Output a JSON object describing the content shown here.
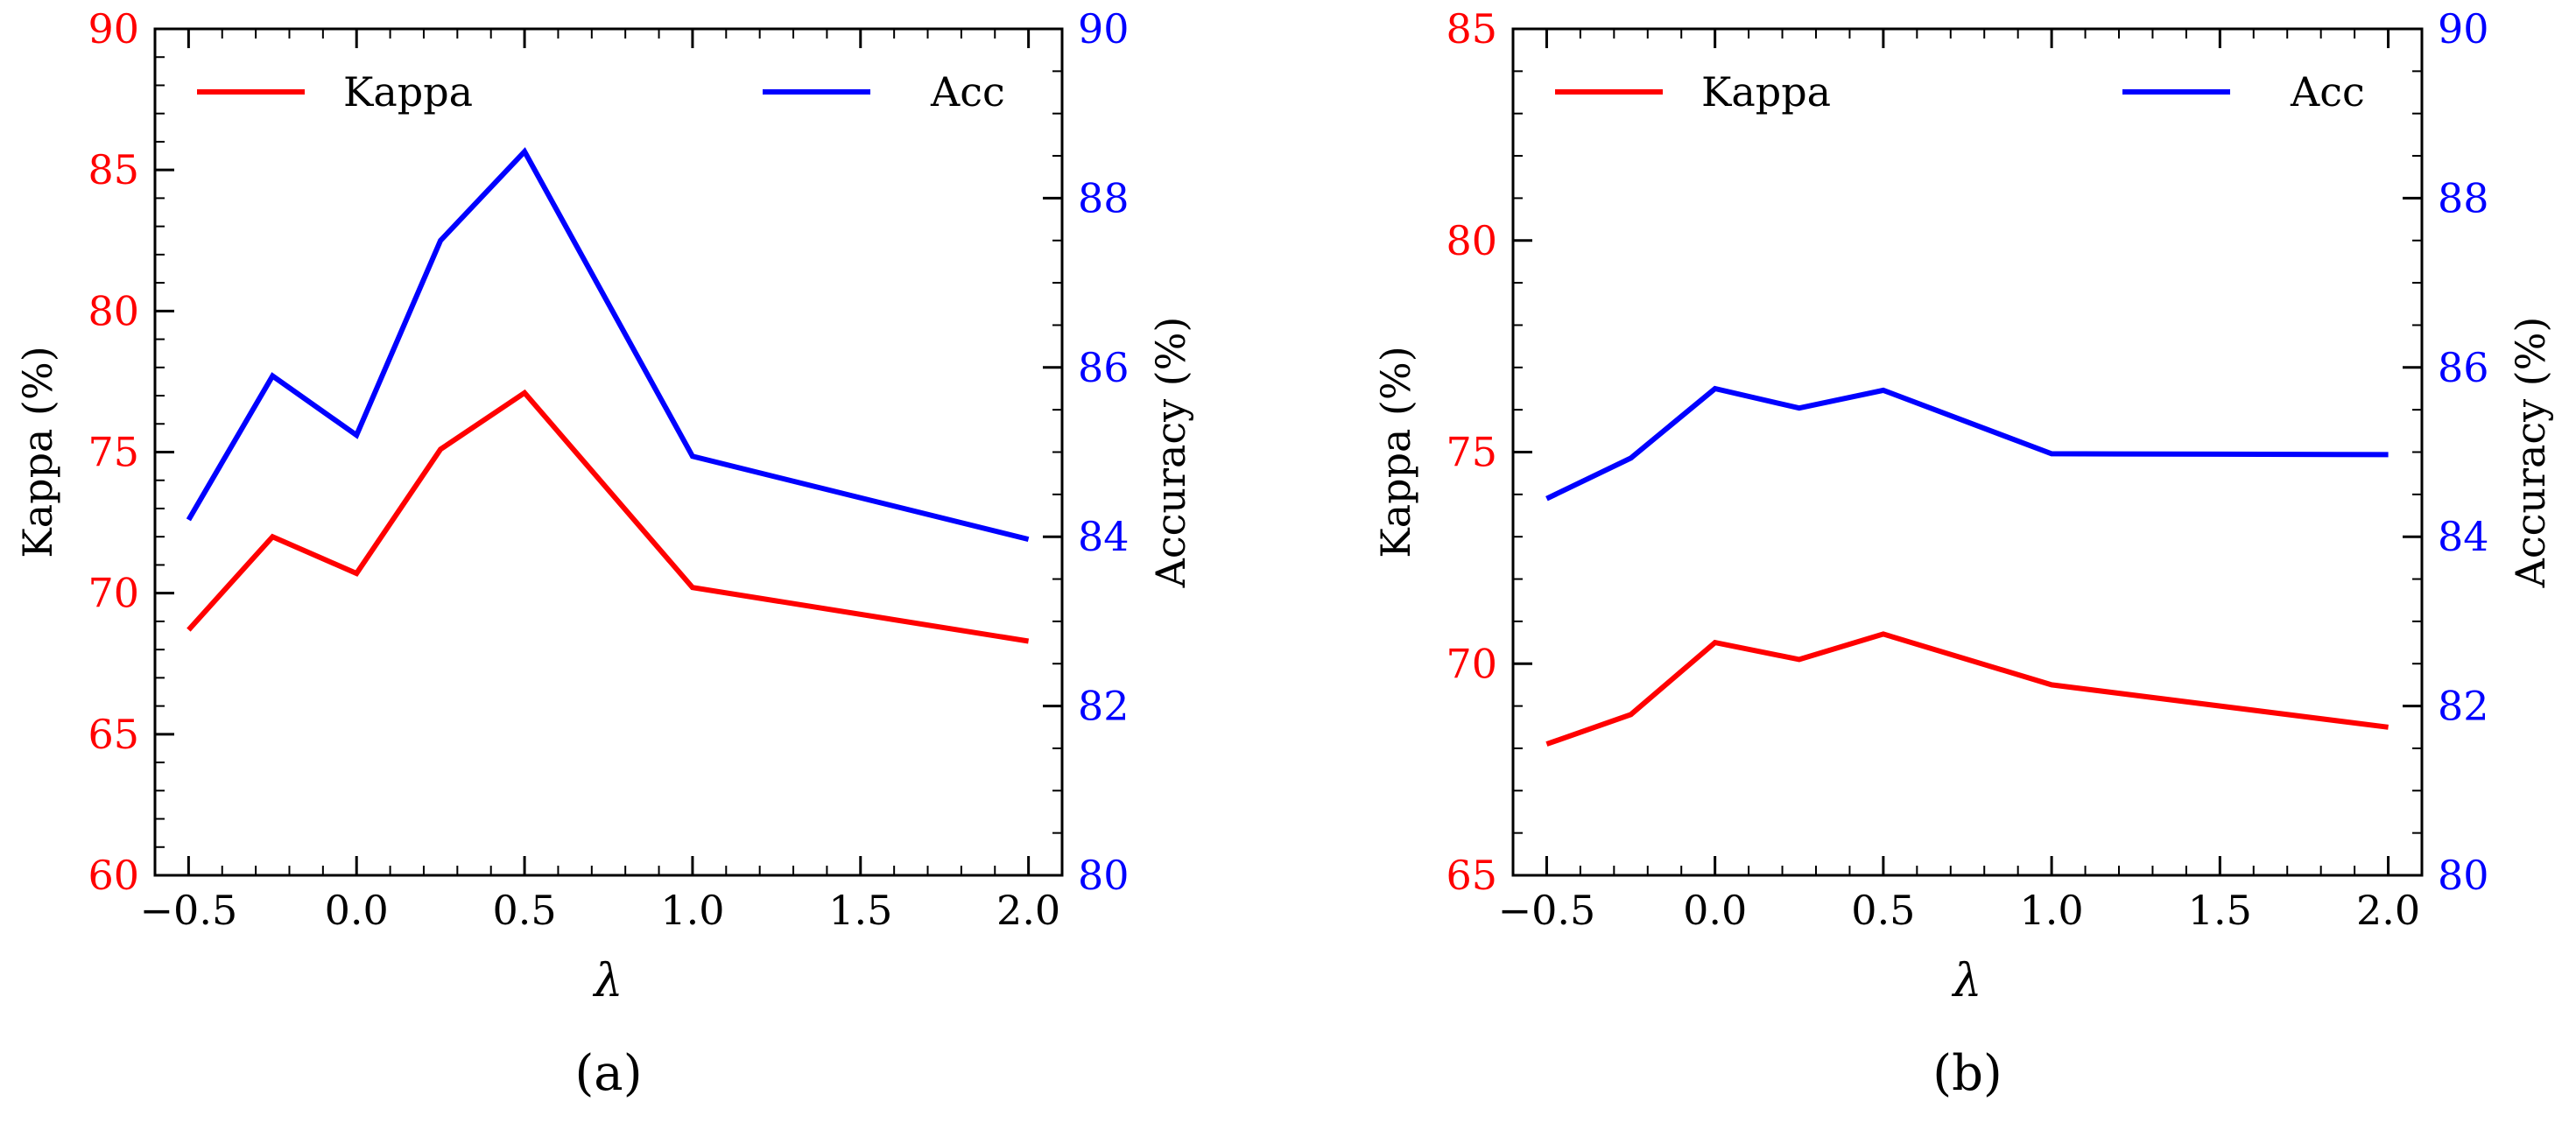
{
  "chart_data": [
    {
      "type": "line",
      "caption": "(a)",
      "xlabel": "λ",
      "ylabel_left": "Kappa (%)",
      "ylabel_right": "Accuracy (%)",
      "xlim": [
        -0.6,
        2.1
      ],
      "ylim_left": [
        60,
        90
      ],
      "ylim_right": [
        80,
        90
      ],
      "xticks": [
        -0.5,
        0.0,
        0.5,
        1.0,
        1.5,
        2.0
      ],
      "xtick_labels": [
        "−0.5",
        "0.0",
        "0.5",
        "1.0",
        "1.5",
        "2.0"
      ],
      "yticks_left": [
        60,
        65,
        70,
        75,
        80,
        85,
        90
      ],
      "yticks_right": [
        80,
        82,
        84,
        86,
        88,
        90
      ],
      "x": [
        -0.5,
        -0.25,
        0.0,
        0.25,
        0.5,
        1.0,
        2.0
      ],
      "series": [
        {
          "name": "Kappa",
          "axis": "left",
          "color": "#ff0000",
          "values": [
            68.7,
            72.0,
            70.7,
            75.1,
            77.1,
            70.2,
            68.3
          ]
        },
        {
          "name": "Acc",
          "axis": "right",
          "color": "#0000ff",
          "values": [
            84.2,
            85.9,
            85.2,
            87.5,
            88.55,
            84.95,
            83.97
          ]
        }
      ],
      "legend": [
        "Kappa",
        "Acc"
      ]
    },
    {
      "type": "line",
      "caption": "(b)",
      "xlabel": "λ",
      "ylabel_left": "Kappa (%)",
      "ylabel_right": "Accuracy (%)",
      "xlim": [
        -0.6,
        2.1
      ],
      "ylim_left": [
        65,
        85
      ],
      "ylim_right": [
        80,
        90
      ],
      "xticks": [
        -0.5,
        0.0,
        0.5,
        1.0,
        1.5,
        2.0
      ],
      "xtick_labels": [
        "−0.5",
        "0.0",
        "0.5",
        "1.0",
        "1.5",
        "2.0"
      ],
      "yticks_left": [
        65,
        70,
        75,
        80,
        85
      ],
      "yticks_right": [
        80,
        82,
        84,
        86,
        88,
        90
      ],
      "x": [
        -0.5,
        -0.25,
        0.0,
        0.25,
        0.5,
        1.0,
        2.0
      ],
      "series": [
        {
          "name": "Kappa",
          "axis": "left",
          "color": "#ff0000",
          "values": [
            68.1,
            68.8,
            70.5,
            70.1,
            70.7,
            69.5,
            68.5
          ]
        },
        {
          "name": "Acc",
          "axis": "right",
          "color": "#0000ff",
          "values": [
            84.45,
            84.93,
            85.75,
            85.52,
            85.73,
            84.98,
            84.97
          ]
        }
      ],
      "legend": [
        "Kappa",
        "Acc"
      ]
    }
  ],
  "colors": {
    "left_axis": "#ff0000",
    "right_axis": "#0000ff",
    "frame": "#000000"
  }
}
